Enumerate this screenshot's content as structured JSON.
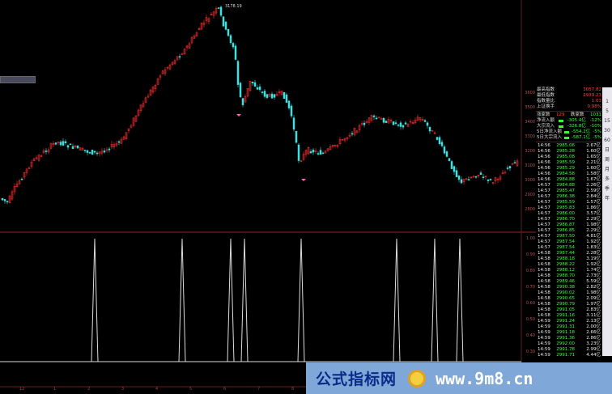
{
  "chart": {
    "peak_label": "3178.19",
    "price_axis": [
      "3600",
      "3500",
      "3400",
      "3300",
      "3200",
      "3100",
      "3000",
      "2900",
      "2800"
    ],
    "indicator_axis": [
      "1.00",
      "0.90",
      "0.80",
      "0.70",
      "0.60",
      "0.50",
      "0.40",
      "0.30"
    ],
    "time_axis": [
      "12",
      "1",
      "2",
      "3",
      "4",
      "5",
      "6",
      "7",
      "8"
    ],
    "up_color": "#ff3030",
    "down_color": "#40e0e0"
  },
  "panel": {
    "header": [
      {
        "label": "最高指数",
        "value": "3057.82"
      },
      {
        "label": "最低指数",
        "value": "2939.23"
      },
      {
        "label": "指数量比",
        "value": "1.03"
      },
      {
        "label": "上证换手",
        "value": "0.98%"
      }
    ],
    "breadth": {
      "up_label": "涨家数",
      "up": "129",
      "down_label": "跌家数",
      "down": "1031"
    },
    "flows": [
      {
        "label": "净流入额",
        "value": "-305.4亿",
        "pct": "-12%"
      },
      {
        "label": "大宗流入",
        "value": "-326.8亿",
        "pct": "-10%"
      },
      {
        "label": "5日净流入额",
        "value": "-554.2亿",
        "pct": "-5%"
      },
      {
        "label": "5日大宗流入",
        "value": "-587.1亿",
        "pct": "-5%"
      }
    ],
    "ticks": [
      [
        "14:56",
        "2985.06",
        "2.67亿"
      ],
      [
        "14:56",
        "2985.28",
        "1.60亿"
      ],
      [
        "14:56",
        "2985.08",
        "1.65亿"
      ],
      [
        "14:56",
        "2985.59",
        "2.21亿"
      ],
      [
        "14:56",
        "2985.29",
        "1.60亿"
      ],
      [
        "14:56",
        "2984.58",
        "1.58亿"
      ],
      [
        "14:56",
        "2984.88",
        "1.67亿"
      ],
      [
        "14:57",
        "2984.88",
        "2.26亿"
      ],
      [
        "14:57",
        "2985.47",
        "2.59亿"
      ],
      [
        "14:57",
        "2986.38",
        "2.84亿"
      ],
      [
        "14:57",
        "2985.59",
        "1.57亿"
      ],
      [
        "14:57",
        "2985.83",
        "1.86亿"
      ],
      [
        "14:57",
        "2986.00",
        "3.57亿"
      ],
      [
        "14:57",
        "2986.70",
        "2.29亿"
      ],
      [
        "14:57",
        "2986.87",
        "1.98亿"
      ],
      [
        "14:57",
        "2986.85",
        "2.29亿"
      ],
      [
        "14:57",
        "2987.50",
        "4.81亿"
      ],
      [
        "14:57",
        "2987.54",
        "1.92亿"
      ],
      [
        "14:57",
        "2987.54",
        "1.83亿"
      ],
      [
        "14:58",
        "2987.44",
        "2.28亿"
      ],
      [
        "14:58",
        "2988.18",
        "3.19亿"
      ],
      [
        "14:58",
        "2988.22",
        "1.92亿"
      ],
      [
        "14:58",
        "2988.12",
        "1.74亿"
      ],
      [
        "14:58",
        "2988.70",
        "2.73亿"
      ],
      [
        "14:58",
        "2989.46",
        "5.59亿"
      ],
      [
        "14:58",
        "2990.38",
        "2.82亿"
      ],
      [
        "14:58",
        "2990.02",
        "1.98亿"
      ],
      [
        "14:58",
        "2990.65",
        "2.09亿"
      ],
      [
        "14:58",
        "2990.79",
        "1.97亿"
      ],
      [
        "14:58",
        "2991.05",
        "2.83亿"
      ],
      [
        "14:58",
        "2991.16",
        "3.11亿"
      ],
      [
        "14:59",
        "2991.24",
        "2.13亿"
      ],
      [
        "14:59",
        "2991.31",
        "2.00亿"
      ],
      [
        "14:59",
        "2991.18",
        "2.66亿"
      ],
      [
        "14:59",
        "2991.36",
        "2.86亿"
      ],
      [
        "14:59",
        "2992.00",
        "3.23亿"
      ],
      [
        "14:59",
        "2991.78",
        "2.99亿"
      ],
      [
        "14:59",
        "2991.71",
        "4.44亿"
      ]
    ]
  },
  "sidebar": [
    "1",
    "5",
    "15",
    "30",
    "60",
    "日",
    "周",
    "月",
    "多",
    "季",
    "年"
  ],
  "watermark": {
    "cn": "公式指标网",
    "url": "www.9m8.cn"
  }
}
